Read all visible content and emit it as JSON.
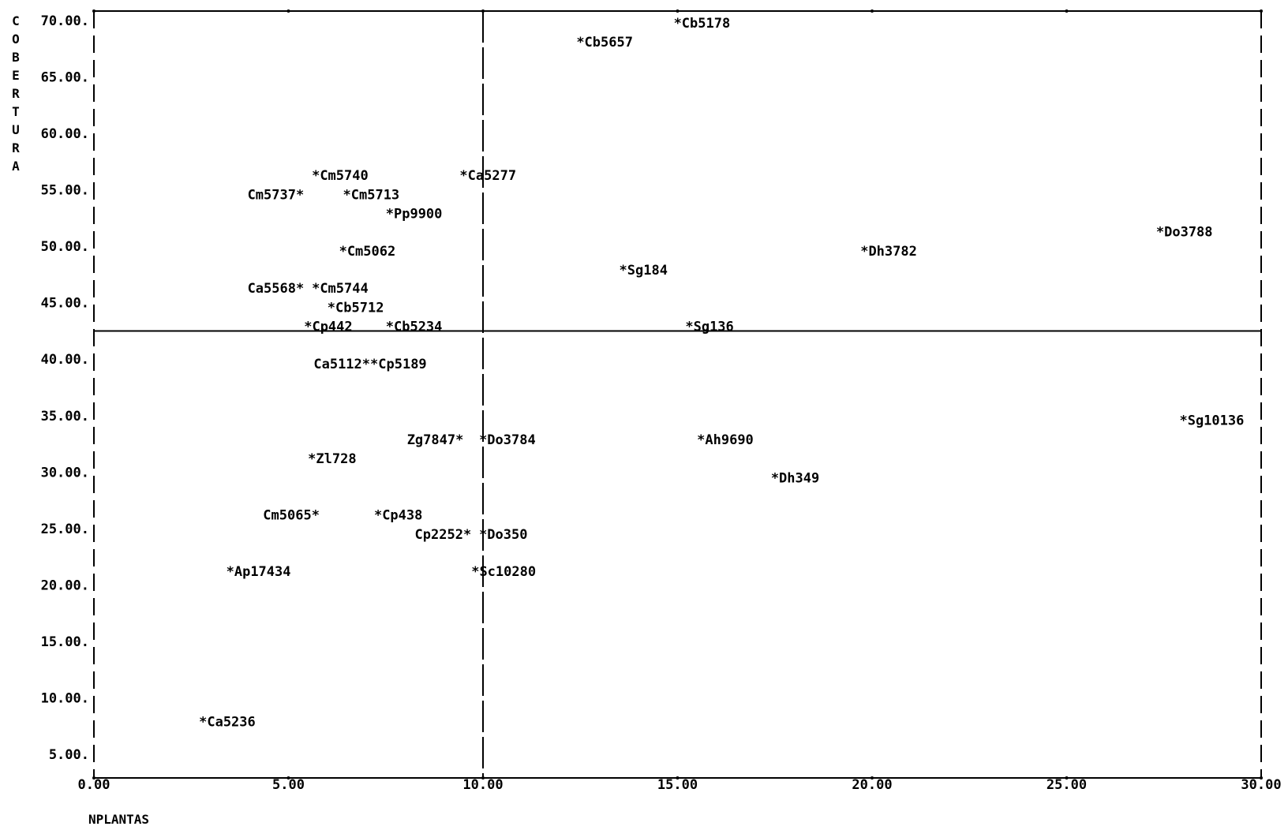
{
  "chart_data": {
    "type": "scatter",
    "title": "",
    "xlabel": "NPLANTAS",
    "ylabel": "COBERTURA",
    "xlim": [
      0,
      30
    ],
    "ylim": [
      3.5,
      70
    ],
    "x_ticks": [
      "0.00",
      "5.00",
      "10.00",
      "15.00",
      "20.00",
      "25.00",
      "30.00"
    ],
    "y_ticks": [
      "70.00",
      "65.00",
      "60.00",
      "55.00",
      "50.00",
      "45.00",
      "40.00",
      "35.00",
      "30.00",
      "25.00",
      "20.00",
      "15.00",
      "10.00",
      "5.00"
    ],
    "reference_lines": {
      "x": 10.0,
      "y": 42.5
    },
    "grid": false,
    "points": [
      {
        "label": "*Cb5178",
        "x": 14.9,
        "y": 69.8,
        "anchor": "left"
      },
      {
        "label": "*Cb5657",
        "x": 12.4,
        "y": 68.1,
        "anchor": "left"
      },
      {
        "label": "*Cm5740",
        "x": 5.6,
        "y": 56.3,
        "anchor": "left"
      },
      {
        "label": "*Ca5277",
        "x": 9.4,
        "y": 56.3,
        "anchor": "left"
      },
      {
        "label": "Cm5737*",
        "x": 5.4,
        "y": 54.6,
        "anchor": "right"
      },
      {
        "label": "*Cm5713",
        "x": 6.4,
        "y": 54.6,
        "anchor": "left"
      },
      {
        "label": "*Pp9900",
        "x": 7.5,
        "y": 52.9,
        "anchor": "left"
      },
      {
        "label": "*Do3788",
        "x": 27.3,
        "y": 51.3,
        "anchor": "left"
      },
      {
        "label": "*Cm5062",
        "x": 6.3,
        "y": 49.6,
        "anchor": "left"
      },
      {
        "label": "*Dh3782",
        "x": 19.7,
        "y": 49.6,
        "anchor": "left"
      },
      {
        "label": "*Sg184",
        "x": 13.5,
        "y": 47.9,
        "anchor": "left"
      },
      {
        "label": "Ca5568*",
        "x": 5.4,
        "y": 46.3,
        "anchor": "right"
      },
      {
        "label": "*Cm5744",
        "x": 5.6,
        "y": 46.3,
        "anchor": "left"
      },
      {
        "label": "*Cb5712",
        "x": 6.0,
        "y": 44.6,
        "anchor": "left"
      },
      {
        "label": "*Cp442",
        "x": 5.4,
        "y": 42.9,
        "anchor": "left"
      },
      {
        "label": "*Cb5234",
        "x": 7.5,
        "y": 42.9,
        "anchor": "left"
      },
      {
        "label": "*Sg136",
        "x": 15.2,
        "y": 42.9,
        "anchor": "left"
      },
      {
        "label": "Ca5112*",
        "x": 7.1,
        "y": 39.6,
        "anchor": "right"
      },
      {
        "label": "*Cp5189",
        "x": 7.1,
        "y": 39.6,
        "anchor": "left"
      },
      {
        "label": "*Sg10136",
        "x": 27.9,
        "y": 34.6,
        "anchor": "left"
      },
      {
        "label": "Zg7847*",
        "x": 9.5,
        "y": 32.9,
        "anchor": "right"
      },
      {
        "label": "*Do3784",
        "x": 9.9,
        "y": 32.9,
        "anchor": "left"
      },
      {
        "label": "*Ah9690",
        "x": 15.5,
        "y": 32.9,
        "anchor": "left"
      },
      {
        "label": "*Zl728",
        "x": 5.5,
        "y": 31.2,
        "anchor": "left"
      },
      {
        "label": "*Dh349",
        "x": 17.4,
        "y": 29.5,
        "anchor": "left"
      },
      {
        "label": "Cm5065*",
        "x": 5.8,
        "y": 26.2,
        "anchor": "right"
      },
      {
        "label": "*Cp438",
        "x": 7.2,
        "y": 26.2,
        "anchor": "left"
      },
      {
        "label": "Cp2252*",
        "x": 9.7,
        "y": 24.5,
        "anchor": "right"
      },
      {
        "label": "*Do350",
        "x": 9.9,
        "y": 24.5,
        "anchor": "left"
      },
      {
        "label": "*Ap17434",
        "x": 3.4,
        "y": 21.2,
        "anchor": "left"
      },
      {
        "label": "*Sc10280",
        "x": 9.7,
        "y": 21.2,
        "anchor": "left"
      },
      {
        "label": "*Ca5236",
        "x": 2.7,
        "y": 7.9,
        "anchor": "left"
      }
    ]
  }
}
